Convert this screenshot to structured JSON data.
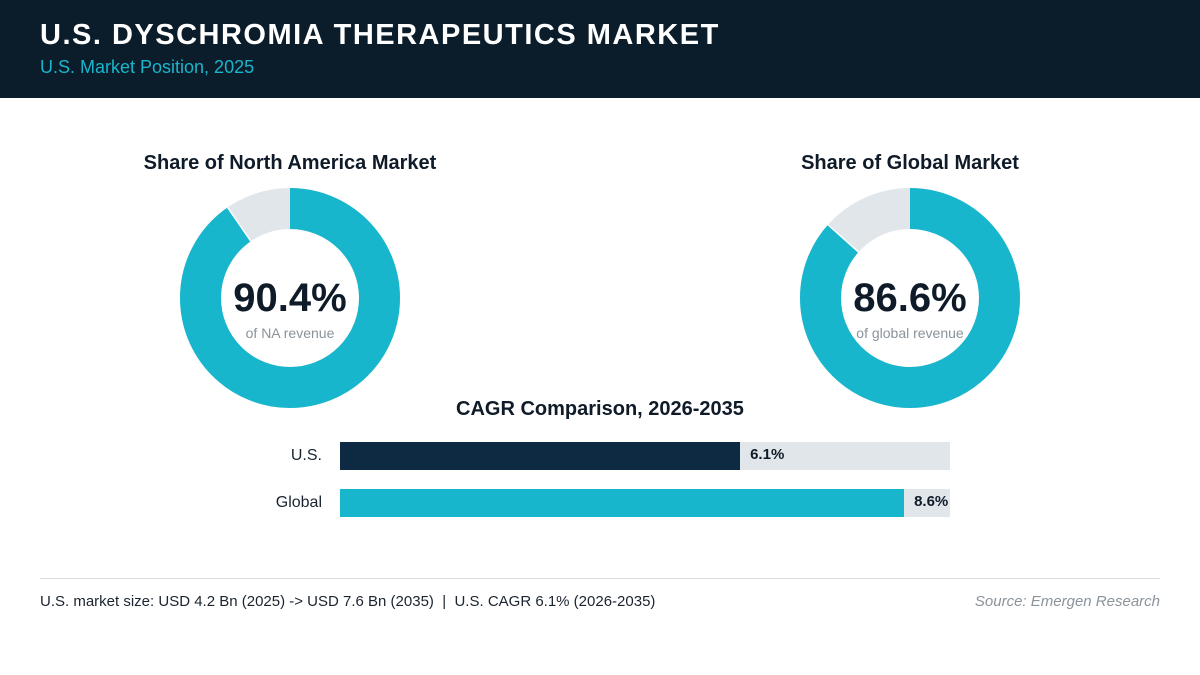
{
  "header": {
    "title": "U.S. DYSCHROMIA THERAPEUTICS MARKET",
    "subtitle": "U.S. Market Position, 2025"
  },
  "colors": {
    "accent": "#18b6cc",
    "dark_bar": "#0e2a42",
    "track": "#e1e6eb",
    "header_bg": "#0b1c2b"
  },
  "chart_data": [
    {
      "type": "pie",
      "title": "Share of North America Market",
      "value_label": "90.4%",
      "sub_label": "of NA revenue",
      "share": 90.4
    },
    {
      "type": "pie",
      "title": "Share of Global Market",
      "value_label": "86.6%",
      "sub_label": "of global revenue",
      "share": 86.6
    },
    {
      "type": "bar",
      "title": "CAGR Comparison, 2026-2035",
      "categories": [
        "U.S.",
        "Global"
      ],
      "values": [
        6.1,
        8.6
      ],
      "value_labels": [
        "6.1%",
        "8.6%"
      ],
      "xlim": [
        0,
        9.3
      ]
    }
  ],
  "footer": {
    "note": "U.S. market size: USD 4.2 Bn (2025) -> USD 7.6 Bn (2035)  |  U.S. CAGR 6.1% (2026-2035)",
    "source": "Source: Emergen Research"
  }
}
